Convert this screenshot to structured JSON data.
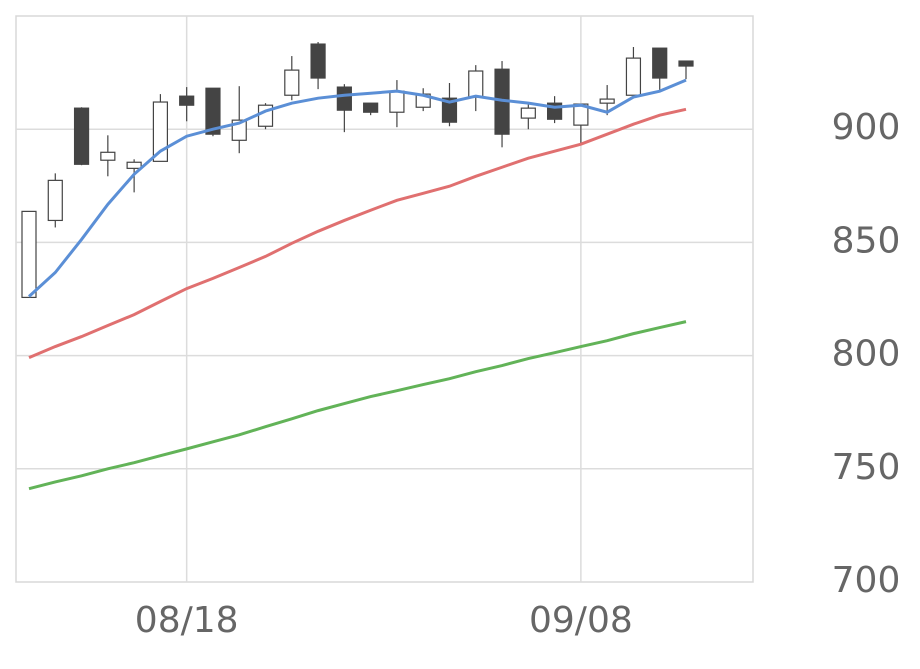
{
  "chart_data": {
    "type": "candlestick",
    "categories": [
      null,
      null,
      null,
      null,
      null,
      null,
      "08/18",
      null,
      null,
      null,
      null,
      null,
      null,
      null,
      null,
      null,
      null,
      null,
      null,
      null,
      null,
      "09/08",
      null,
      null,
      null,
      null
    ],
    "open": [
      825.7,
      859.7,
      909.3,
      886.3,
      882.7,
      885.8,
      914.6,
      918.1,
      895.1,
      901.3,
      915.0,
      937.6,
      918.6,
      911.5,
      907.5,
      909.7,
      913.7,
      914.2,
      926.5,
      904.9,
      911.5,
      901.8,
      911.5,
      915.0,
      935.8,
      930.1
    ],
    "high": [
      863.7,
      880.5,
      909.7,
      897.3,
      886.7,
      915.5,
      918.6,
      918.1,
      919.0,
      911.5,
      932.3,
      938.5,
      919.9,
      911.5,
      921.7,
      918.1,
      920.4,
      928.3,
      930.1,
      911.5,
      914.6,
      911.1,
      919.5,
      936.3,
      935.8,
      930.1
    ],
    "low": [
      825.7,
      856.6,
      884.1,
      879.2,
      872.1,
      885.8,
      903.5,
      896.9,
      889.4,
      900.0,
      912.8,
      917.7,
      898.7,
      906.2,
      900.9,
      908.0,
      901.3,
      908.0,
      892.0,
      900.0,
      902.7,
      893.4,
      906.2,
      915.0,
      917.3,
      922.1
    ],
    "close": [
      863.7,
      877.4,
      884.5,
      889.8,
      885.4,
      912.0,
      910.6,
      897.8,
      904.0,
      910.6,
      926.1,
      922.6,
      908.4,
      907.5,
      916.8,
      915.5,
      903.1,
      925.7,
      897.8,
      909.3,
      904.4,
      911.1,
      913.3,
      931.4,
      922.6,
      927.9
    ],
    "up_color": "#ffffff",
    "down_color": "#444444",
    "candle_stroke": "#444444",
    "lines": [
      {
        "color": "#5b8fd6",
        "values": [
          826.1,
          836.7,
          851.3,
          866.8,
          880.1,
          890.3,
          896.9,
          900.0,
          902.7,
          908.0,
          911.5,
          913.7,
          915.0,
          915.9,
          916.8,
          915.0,
          912.0,
          914.6,
          912.8,
          911.5,
          909.7,
          910.6,
          907.5,
          914.2,
          916.8,
          921.7
        ]
      },
      {
        "color": "#e07070",
        "values": [
          799.1,
          804.0,
          808.4,
          813.3,
          818.1,
          823.9,
          829.6,
          834.1,
          838.9,
          843.8,
          849.6,
          854.9,
          859.7,
          864.2,
          868.6,
          871.7,
          874.8,
          879.2,
          883.2,
          887.2,
          890.3,
          893.4,
          897.8,
          902.2,
          906.2,
          908.8
        ]
      },
      {
        "color": "#62b358",
        "values": [
          741.2,
          744.2,
          746.9,
          750.0,
          752.7,
          755.8,
          758.8,
          761.9,
          765.0,
          768.6,
          772.1,
          775.7,
          778.8,
          781.9,
          784.5,
          787.2,
          789.8,
          792.9,
          795.6,
          798.7,
          801.3,
          804.0,
          806.6,
          809.7,
          812.4,
          815.0
        ]
      }
    ],
    "ylim": [
      700,
      950
    ],
    "yticks": [
      700,
      750,
      800,
      850,
      900
    ],
    "grid": true
  }
}
